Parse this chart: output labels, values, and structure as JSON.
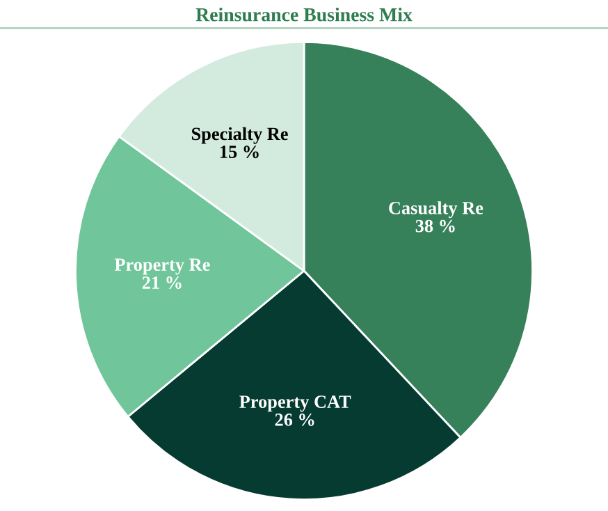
{
  "chart_data": {
    "type": "pie",
    "title": "Reinsurance Business Mix",
    "categories": [
      "Casualty Re",
      "Property CAT",
      "Property Re",
      "Specialty Re"
    ],
    "values": [
      38,
      26,
      21,
      15
    ],
    "colors": [
      "#36805a",
      "#063b32",
      "#70c69a",
      "#d3ebdf"
    ],
    "value_labels": [
      "38 %",
      "26 %",
      "21 %",
      "15 %"
    ]
  }
}
